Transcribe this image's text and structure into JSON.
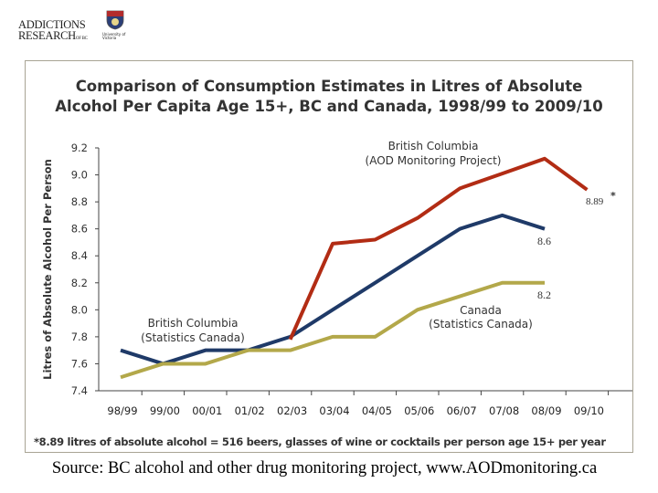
{
  "logo": {
    "org_line1": "ADDICTIONS",
    "org_line2": "RESEARCH",
    "org_suffix": "OF BC",
    "university": "University of Victoria"
  },
  "chart_data": {
    "type": "line",
    "title": "Comparison of Consumption Estimates in Litres of Absolute Alcohol Per Capita Age 15+, BC and Canada, 1998/99 to 2009/10",
    "title_line1": "Comparison of Consumption Estimates in Litres of Absolute",
    "title_line2": "Alcohol Per Capita Age 15+, BC and Canada, 1998/99 to 2009/10",
    "xlabel": "",
    "ylabel": "Litres of Absolute Alcohol Per Person",
    "ylim": [
      7.4,
      9.2
    ],
    "yticks": [
      "7.4",
      "7.6",
      "7.8",
      "8.0",
      "8.2",
      "8.4",
      "8.6",
      "8.8",
      "9.0",
      "9.2"
    ],
    "grid": false,
    "categories": [
      "98/99",
      "99/00",
      "00/01",
      "01/02",
      "02/03",
      "03/04",
      "04/05",
      "05/06",
      "06/07",
      "07/08",
      "08/09",
      "09/10"
    ],
    "series": [
      {
        "name": "British Columbia (AOD Monitoring Project)",
        "label_line1": "British Columbia",
        "label_line2": "(AOD Monitoring Project)",
        "color": "#b22c14",
        "values": [
          null,
          null,
          null,
          null,
          7.78,
          8.49,
          8.52,
          8.68,
          8.9,
          9.01,
          9.12,
          8.89
        ],
        "end_label": "8.89",
        "end_mark": "*"
      },
      {
        "name": "British Columbia (Statistics Canada)",
        "label_line1": "British Columbia",
        "label_line2": "(Statistics Canada)",
        "color": "#1f3a68",
        "values": [
          7.7,
          7.6,
          7.7,
          7.7,
          7.8,
          8.0,
          8.2,
          8.4,
          8.6,
          8.7,
          8.6,
          null
        ],
        "end_label": "8.6"
      },
      {
        "name": "Canada (Statistics Canada)",
        "label_line1": "Canada",
        "label_line2": "(Statistics Canada)",
        "color": "#b3a84a",
        "values": [
          7.5,
          7.6,
          7.6,
          7.7,
          7.7,
          7.8,
          7.8,
          8.0,
          8.1,
          8.2,
          8.2,
          null
        ],
        "end_label": "8.2"
      }
    ],
    "footnote": "*8.89 litres of absolute alcohol = 516 beers, glasses of wine or cocktails per person age 15+ per year"
  },
  "source": "Source: BC alcohol and other drug monitoring project, www.AODmonitoring.ca"
}
